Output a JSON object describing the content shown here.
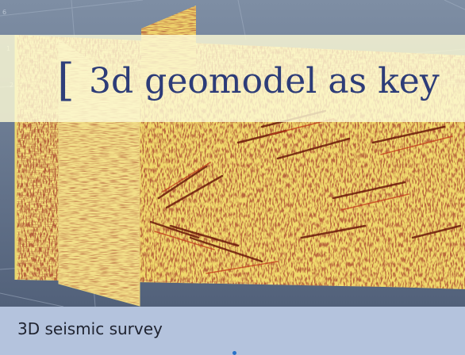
{
  "slide": {
    "title": "3d geomodel as key",
    "caption": "3D seismic survey"
  },
  "icons": {
    "title_bracket": "["
  },
  "colors": {
    "title_text": "#2d3c78",
    "title_band": "#fcfad6",
    "caption_bar": "#b4c3dd",
    "viewport_bg": "#5f6f84",
    "seismic_base": "#f3e07a",
    "seismic_dark": "#5a1a0c",
    "seismic_red": "#c23a1a"
  }
}
